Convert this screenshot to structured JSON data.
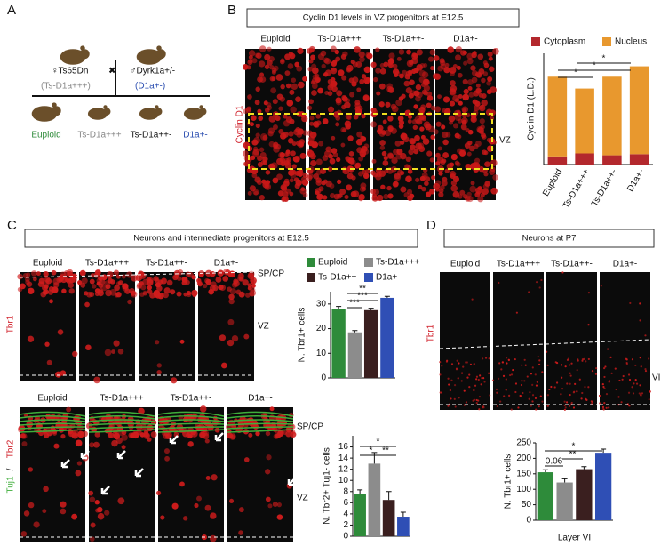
{
  "genotypes": [
    "Euploid",
    "Ts-D1a+++",
    "Ts-D1a++-",
    "D1a+-"
  ],
  "panels": {
    "a": {
      "label": "A",
      "female": "♀Ts65Dn",
      "female_genotype": "(Ts-D1a+++)",
      "cross": "✖",
      "male": "♂Dyrk1a+/-",
      "male_genotype": "(D1a+-)"
    },
    "b": {
      "label": "B",
      "title": "Cyclin D1 levels in VZ progenitors at E12.5",
      "stain": "Cyclin D1",
      "region": "VZ"
    },
    "c": {
      "label": "C",
      "title": "Neurons and intermediate progenitors at E12.5",
      "stain_top": "Tbr1",
      "stain_red": "Tbr2",
      "stain_sep": "/",
      "stain_green": "Tuj1",
      "region_cp": "SP/CP",
      "region_vz": "VZ"
    },
    "d": {
      "label": "D",
      "title": "Neurons at P7",
      "stain": "Tbr1",
      "layer": "VI"
    }
  },
  "chart_data": [
    {
      "type": "stacked_bar",
      "ylabel": "Cyclin D1 (L.D.)",
      "categories": [
        "Euploid",
        "Ts-D1a+++",
        "Ts-D1a++-",
        "D1a+-"
      ],
      "series": [
        {
          "name": "Cytoplasm",
          "color": "#b3282d",
          "values": [
            22,
            30,
            25,
            28
          ]
        },
        {
          "name": "Nucleus",
          "color": "#e8982e",
          "values": [
            215,
            175,
            212,
            237
          ]
        }
      ],
      "ylim": [
        0,
        300
      ],
      "annotations": [
        "*",
        "*",
        "*"
      ]
    },
    {
      "type": "bar",
      "ylabel": "N. Tbr1+ cells",
      "categories": [
        "Euploid",
        "Ts-D1a+++",
        "Ts-D1a++-",
        "D1a+-"
      ],
      "values": [
        28,
        18.5,
        27.5,
        32.5
      ],
      "errors": [
        1,
        0.7,
        0.8,
        0.6
      ],
      "colors": [
        "#2e8b3a",
        "#8c8c8c",
        "#3a1f1f",
        "#2f4fb5"
      ],
      "ylim": [
        0,
        35
      ],
      "yticks": [
        0,
        10,
        20,
        30
      ],
      "annotations": [
        "***",
        "***",
        "**"
      ]
    },
    {
      "type": "bar",
      "ylabel": "N. Tbr2+ Tuj1- cells",
      "categories": [
        "Euploid",
        "Ts-D1a+++",
        "Ts-D1a++-",
        "D1a+-"
      ],
      "values": [
        7.5,
        13,
        6.5,
        3.5
      ],
      "errors": [
        0.8,
        2,
        1.5,
        0.8
      ],
      "colors": [
        "#2e8b3a",
        "#8c8c8c",
        "#3a1f1f",
        "#2f4fb5"
      ],
      "ylim": [
        0,
        18
      ],
      "yticks": [
        0,
        2,
        4,
        6,
        8,
        10,
        12,
        14,
        16
      ],
      "annotations": [
        "*",
        "**",
        "*"
      ]
    },
    {
      "type": "bar",
      "ylabel": "N. Tbr1+ cells",
      "xlabel": "Layer VI",
      "categories": [
        "Euploid",
        "Ts-D1a+++",
        "Ts-D1a++-",
        "D1a+-"
      ],
      "values": [
        155,
        122,
        165,
        218
      ],
      "errors": [
        8,
        12,
        8,
        12
      ],
      "colors": [
        "#2e8b3a",
        "#8c8c8c",
        "#3a1f1f",
        "#2f4fb5"
      ],
      "ylim": [
        0,
        250
      ],
      "yticks": [
        0,
        50,
        100,
        150,
        200,
        250
      ],
      "annotations": [
        "0.06",
        "**",
        "*"
      ]
    }
  ]
}
